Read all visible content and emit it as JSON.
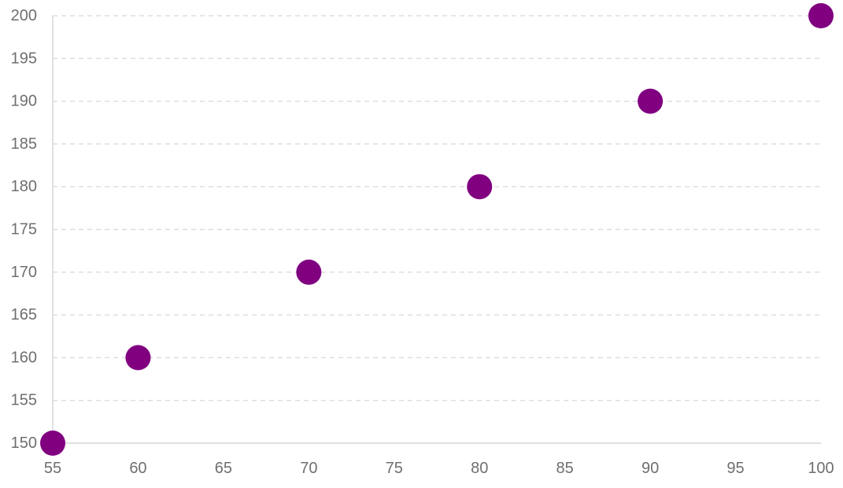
{
  "chart_data": {
    "type": "scatter",
    "points": [
      {
        "x": 55,
        "y": 150
      },
      {
        "x": 60,
        "y": 160
      },
      {
        "x": 70,
        "y": 170
      },
      {
        "x": 80,
        "y": 180
      },
      {
        "x": 90,
        "y": 190
      },
      {
        "x": 100,
        "y": 200
      }
    ],
    "xlim": [
      55,
      100
    ],
    "ylim": [
      150,
      200
    ],
    "x_ticks": [
      "55",
      "60",
      "65",
      "70",
      "75",
      "80",
      "85",
      "90",
      "95",
      "100"
    ],
    "y_ticks": [
      "150",
      "155",
      "160",
      "165",
      "170",
      "175",
      "180",
      "185",
      "190",
      "195",
      "200"
    ],
    "grid": true,
    "legend": false,
    "point_color": "#800080",
    "title": "",
    "xlabel": "",
    "ylabel": ""
  }
}
